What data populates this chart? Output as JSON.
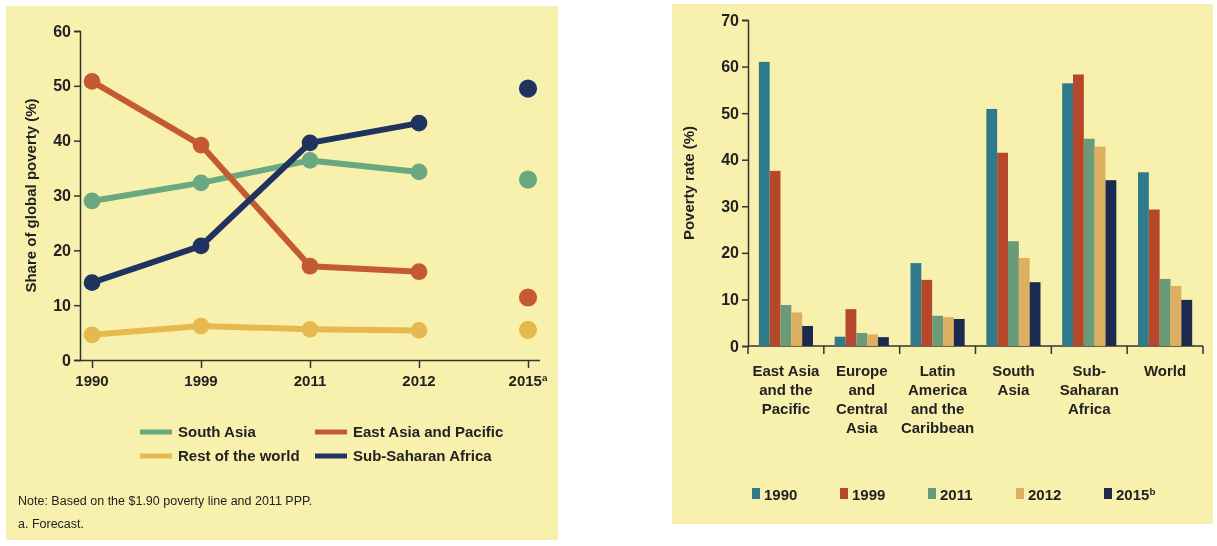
{
  "chart_data": [
    {
      "type": "line",
      "ylabel": "Share of global poverty (%)",
      "categories": [
        "1990",
        "1999",
        "2011",
        "2012",
        "2015$^{a}$"
      ],
      "ylim": [
        0,
        60
      ],
      "yticks": [
        0,
        10,
        20,
        30,
        40,
        50,
        60
      ],
      "marker": "circle",
      "legend": "bottom",
      "grid": false,
      "series": [
        {
          "name": "South Asia",
          "color": "#6aa882",
          "values": [
            29.0,
            32.3,
            36.4,
            34.3,
            null
          ]
        },
        {
          "name": "East Asia and Pacific",
          "color": "#c45a34",
          "values": [
            50.8,
            39.2,
            17.1,
            16.1,
            null
          ]
        },
        {
          "name": "Rest of the world",
          "color": "#e6b850",
          "values": [
            4.6,
            6.2,
            5.6,
            5.4,
            null
          ]
        },
        {
          "name": "Sub-Saharan Africa",
          "color": "#1f3260",
          "values": [
            14.1,
            20.8,
            39.6,
            43.2,
            null
          ]
        },
        {
          "type": "scatter",
          "color": "#6aa882",
          "values": [
            null,
            null,
            null,
            null,
            32.9
          ]
        },
        {
          "type": "scatter",
          "color": "#c45a34",
          "values": [
            null,
            null,
            null,
            null,
            11.4
          ]
        },
        {
          "type": "scatter",
          "color": "#e6b850",
          "values": [
            null,
            null,
            null,
            null,
            5.5
          ]
        },
        {
          "type": "scatter",
          "color": "#1f3260",
          "values": [
            null,
            null,
            null,
            null,
            49.5
          ]
        }
      ],
      "annotations": [
        "Note: Based on the $1.90 poverty line and 2011 PPP.",
        "a. Forecast."
      ]
    },
    {
      "type": "bar",
      "ylabel": "Poverty rate (%)",
      "categories": [
        "East Asia and the Pacific",
        "Europe and Central Asia",
        "Latin America and the Caribbean",
        "South Asia",
        "Sub-Saharan Africa",
        "World"
      ],
      "ylim": [
        0,
        70
      ],
      "yticks": [
        0,
        10,
        20,
        30,
        40,
        50,
        60,
        70
      ],
      "legend": "bottom",
      "grid": false,
      "series": [
        {
          "name": "1990",
          "color": "#2e7a8a",
          "values": [
            61.0,
            2.0,
            17.8,
            50.9,
            56.4,
            37.3
          ]
        },
        {
          "name": "1999",
          "color": "#b5472a",
          "values": [
            37.6,
            7.9,
            14.2,
            41.5,
            58.3,
            29.3
          ]
        },
        {
          "name": "2011",
          "color": "#6a9a78",
          "values": [
            8.8,
            2.8,
            6.5,
            22.5,
            44.5,
            14.4
          ]
        },
        {
          "name": "2012",
          "color": "#dcb060",
          "values": [
            7.2,
            2.5,
            6.2,
            18.9,
            42.8,
            12.9
          ]
        },
        {
          "name": "2015$^{b}$",
          "color": "#1b2a4e",
          "values": [
            4.3,
            1.9,
            5.8,
            13.7,
            35.6,
            9.9
          ]
        }
      ]
    }
  ]
}
